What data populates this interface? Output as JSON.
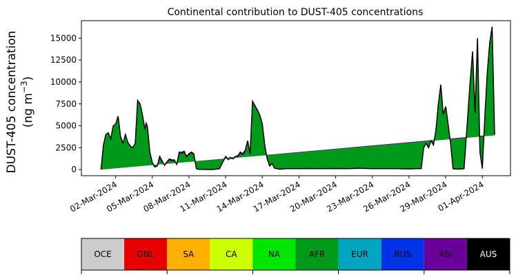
{
  "chart_data": {
    "type": "area",
    "title": "Continental contribution to DUST-405 concentrations",
    "ylabel_line1": "DUST-405 concentration",
    "ylabel_line2_prefix": "(ng m",
    "ylabel_line2_sup": "−3",
    "ylabel_line2_suffix": ")",
    "xlabel": "",
    "ylim": [
      -700,
      17000
    ],
    "y_ticks": [
      0,
      2500,
      5000,
      7500,
      10000,
      12500,
      15000
    ],
    "x_range_days": [
      -1.8,
      33.3
    ],
    "x_ticks": [
      {
        "day": 1,
        "label": "02-Mar-2024"
      },
      {
        "day": 4,
        "label": "05-Mar-2024"
      },
      {
        "day": 7,
        "label": "08-Mar-2024"
      },
      {
        "day": 10,
        "label": "11-Mar-2024"
      },
      {
        "day": 13,
        "label": "14-Mar-2024"
      },
      {
        "day": 16,
        "label": "17-Mar-2024"
      },
      {
        "day": 19,
        "label": "20-Mar-2024"
      },
      {
        "day": 22,
        "label": "23-Mar-2024"
      },
      {
        "day": 25,
        "label": "26-Mar-2024"
      },
      {
        "day": 28,
        "label": "29-Mar-2024"
      },
      {
        "day": 31,
        "label": "01-Apr-2024"
      }
    ],
    "series": [
      {
        "name": "AFR",
        "color": "#009a1a"
      },
      {
        "name": "ASI",
        "color": "#6a0099"
      },
      {
        "name": "Total",
        "color": "#000000"
      }
    ],
    "x_days": [
      -0.2,
      0,
      0.2,
      0.4,
      0.6,
      0.8,
      1,
      1.2,
      1.4,
      1.6,
      1.8,
      2,
      2.2,
      2.4,
      2.6,
      2.8,
      3,
      3.2,
      3.4,
      3.5,
      3.6,
      3.8,
      4,
      4.2,
      4.4,
      4.6,
      4.8,
      5,
      5.2,
      5.4,
      5.6,
      5.8,
      6,
      6.2,
      6.4,
      6.6,
      6.8,
      7,
      7.2,
      7.4,
      7.6,
      7.8,
      8,
      8.5,
      9,
      9.5,
      10,
      10.2,
      10.4,
      10.6,
      10.8,
      11,
      11.2,
      11.4,
      11.6,
      11.8,
      12,
      12.2,
      12.4,
      12.6,
      12.8,
      13,
      13.2,
      13.4,
      13.6,
      13.8,
      14,
      14.2,
      14.4,
      14.6,
      14.8,
      15,
      16,
      17,
      18,
      19,
      20,
      21,
      22,
      23,
      24,
      25,
      25.8,
      26,
      26.2,
      26.4,
      26.6,
      26.8,
      27,
      27.2,
      27.4,
      27.6,
      27.8,
      28,
      28.2,
      28.4,
      28.6,
      29,
      29.5,
      30,
      30.2,
      30.4,
      30.6,
      30.8,
      31,
      31.2,
      31.4,
      31.6,
      31.8,
      32,
      32.1
    ],
    "total_values": [
      0,
      2800,
      4000,
      4200,
      3500,
      5000,
      5200,
      6100,
      3800,
      3000,
      4000,
      3100,
      2700,
      2500,
      3000,
      7900,
      7500,
      6200,
      4600,
      5300,
      4900,
      2000,
      800,
      300,
      400,
      1500,
      1000,
      500,
      900,
      1200,
      1100,
      1100,
      600,
      2000,
      1950,
      2100,
      1500,
      1800,
      2000,
      1800,
      100,
      30,
      20,
      10,
      10,
      100,
      1500,
      1200,
      1400,
      1300,
      1500,
      1600,
      2000,
      1800,
      2200,
      3300,
      1800,
      7800,
      7300,
      6800,
      6200,
      5200,
      2800,
      1200,
      400,
      700,
      150,
      100,
      50,
      50,
      100,
      100,
      100,
      120,
      100,
      120,
      100,
      150,
      100,
      100,
      100,
      80,
      120,
      100,
      2500,
      3000,
      2500,
      3300,
      2800,
      4500,
      7500,
      9700,
      6300,
      7200,
      5200,
      3000,
      100,
      50,
      100,
      10000,
      13500,
      6500,
      15000,
      2000,
      100,
      6000,
      11000,
      14500,
      16300,
      4000
    ],
    "asi_values": [
      0,
      0,
      0,
      0,
      0,
      0,
      0,
      0,
      0,
      0,
      0,
      0,
      0,
      0,
      0,
      200,
      200,
      200,
      100,
      100,
      100,
      400,
      200,
      50,
      50,
      250,
      200,
      100,
      150,
      150,
      150,
      150,
      80,
      200,
      200,
      200,
      150,
      150,
      150,
      150,
      20,
      0,
      0,
      0,
      0,
      0,
      200,
      150,
      200,
      150,
      200,
      200,
      250,
      200,
      250,
      300,
      200,
      200,
      200,
      150,
      150,
      100,
      100,
      50,
      0,
      0,
      0,
      0,
      0,
      0,
      0,
      0,
      0,
      0,
      0,
      0,
      0,
      0,
      0,
      0,
      0,
      0,
      0,
      0,
      100,
      100,
      100,
      100,
      100,
      100,
      200,
      300,
      200,
      200,
      150,
      100,
      0,
      0,
      0,
      200,
      200,
      100,
      200,
      50,
      0,
      100,
      200,
      200,
      200,
      100
    ]
  },
  "legend": {
    "items": [
      {
        "label": "OCE",
        "color": "#cccccc",
        "text_color": "#000000"
      },
      {
        "label": "GNL",
        "color": "#e60000",
        "text_color": "#000000"
      },
      {
        "label": "SA",
        "color": "#ffb000",
        "text_color": "#000000"
      },
      {
        "label": "CA",
        "color": "#ccff00",
        "text_color": "#000000"
      },
      {
        "label": "NA",
        "color": "#00e600",
        "text_color": "#000000"
      },
      {
        "label": "AFR",
        "color": "#009a1a",
        "text_color": "#000000"
      },
      {
        "label": "EUR",
        "color": "#00a6bf",
        "text_color": "#000000"
      },
      {
        "label": "RUS",
        "color": "#0033e6",
        "text_color": "#000000"
      },
      {
        "label": "ASI",
        "color": "#6a0099",
        "text_color": "#000000"
      },
      {
        "label": "AUS",
        "color": "#000000",
        "text_color": "#ffffff"
      }
    ]
  }
}
